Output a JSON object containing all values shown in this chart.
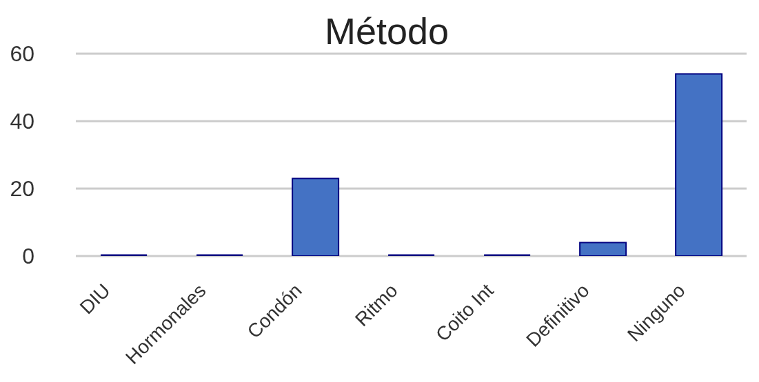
{
  "chart_data": {
    "type": "bar",
    "title": "Método",
    "categories": [
      "DIU",
      "Hormonales",
      "Condón",
      "Ritmo",
      "Coito Int",
      "Definitivo",
      "Ninguno"
    ],
    "values": [
      0,
      0,
      23,
      0,
      0,
      4,
      54
    ],
    "colors": [
      "#000080",
      "#000080",
      "#4472c4",
      "#000080",
      "#000080",
      "#4472c4",
      "#4472c4"
    ],
    "ylim": [
      0,
      60
    ],
    "yticks": [
      0,
      20,
      40,
      60
    ],
    "grid": "y"
  }
}
